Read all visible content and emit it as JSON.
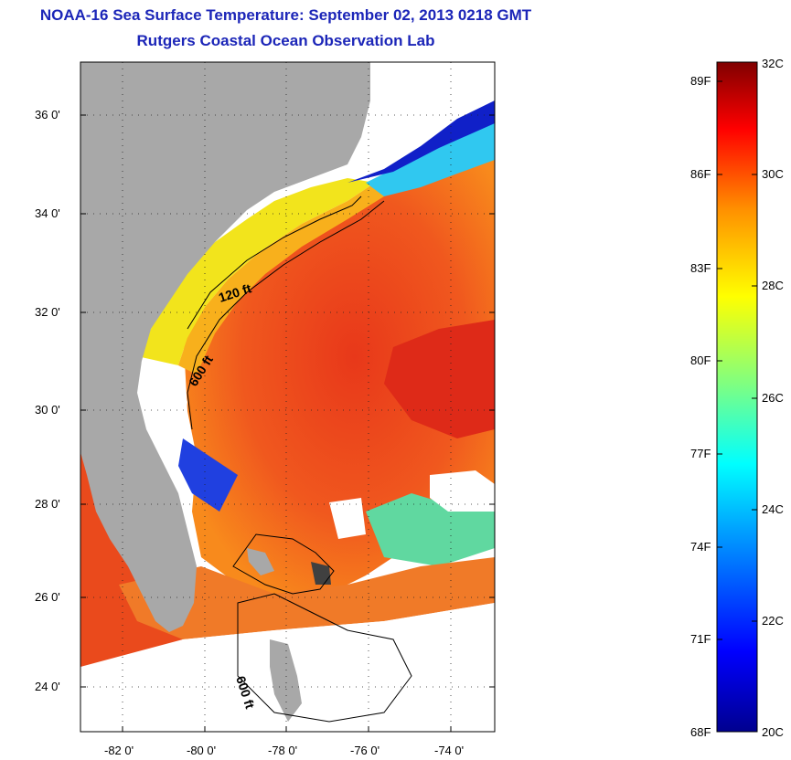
{
  "title": {
    "line1": "NOAA-16 Sea Surface Temperature:  September 02, 2013 0218 GMT",
    "line2": "Rutgers Coastal Ocean Observation Lab"
  },
  "map": {
    "lat_ticks": [
      "36 0'",
      "34 0'",
      "32 0'",
      "30 0'",
      "28 0'",
      "26 0'",
      "24 0'"
    ],
    "lon_ticks": [
      "-82 0'",
      "-80 0'",
      "-78 0'",
      "-76 0'",
      "-74 0'"
    ],
    "isobaths": [
      "120 ft",
      "600 ft",
      "600 ft"
    ],
    "colors": {
      "land": "#a8a8a8",
      "cloud": "#ffffff",
      "warm_core": "#e8401c",
      "shelf": "#f5e81a"
    }
  },
  "colorbar": {
    "fahrenheit_labels": [
      "89F",
      "86F",
      "83F",
      "80F",
      "77F",
      "74F",
      "71F",
      "68F"
    ],
    "celsius_labels": [
      "32C",
      "30C",
      "28C",
      "26C",
      "24C",
      "22C",
      "20C"
    ],
    "colors": [
      "#00008f",
      "#0000ff",
      "#00a0ff",
      "#00ffff",
      "#80ff80",
      "#ffff00",
      "#ff9000",
      "#ff0000",
      "#800000"
    ]
  }
}
